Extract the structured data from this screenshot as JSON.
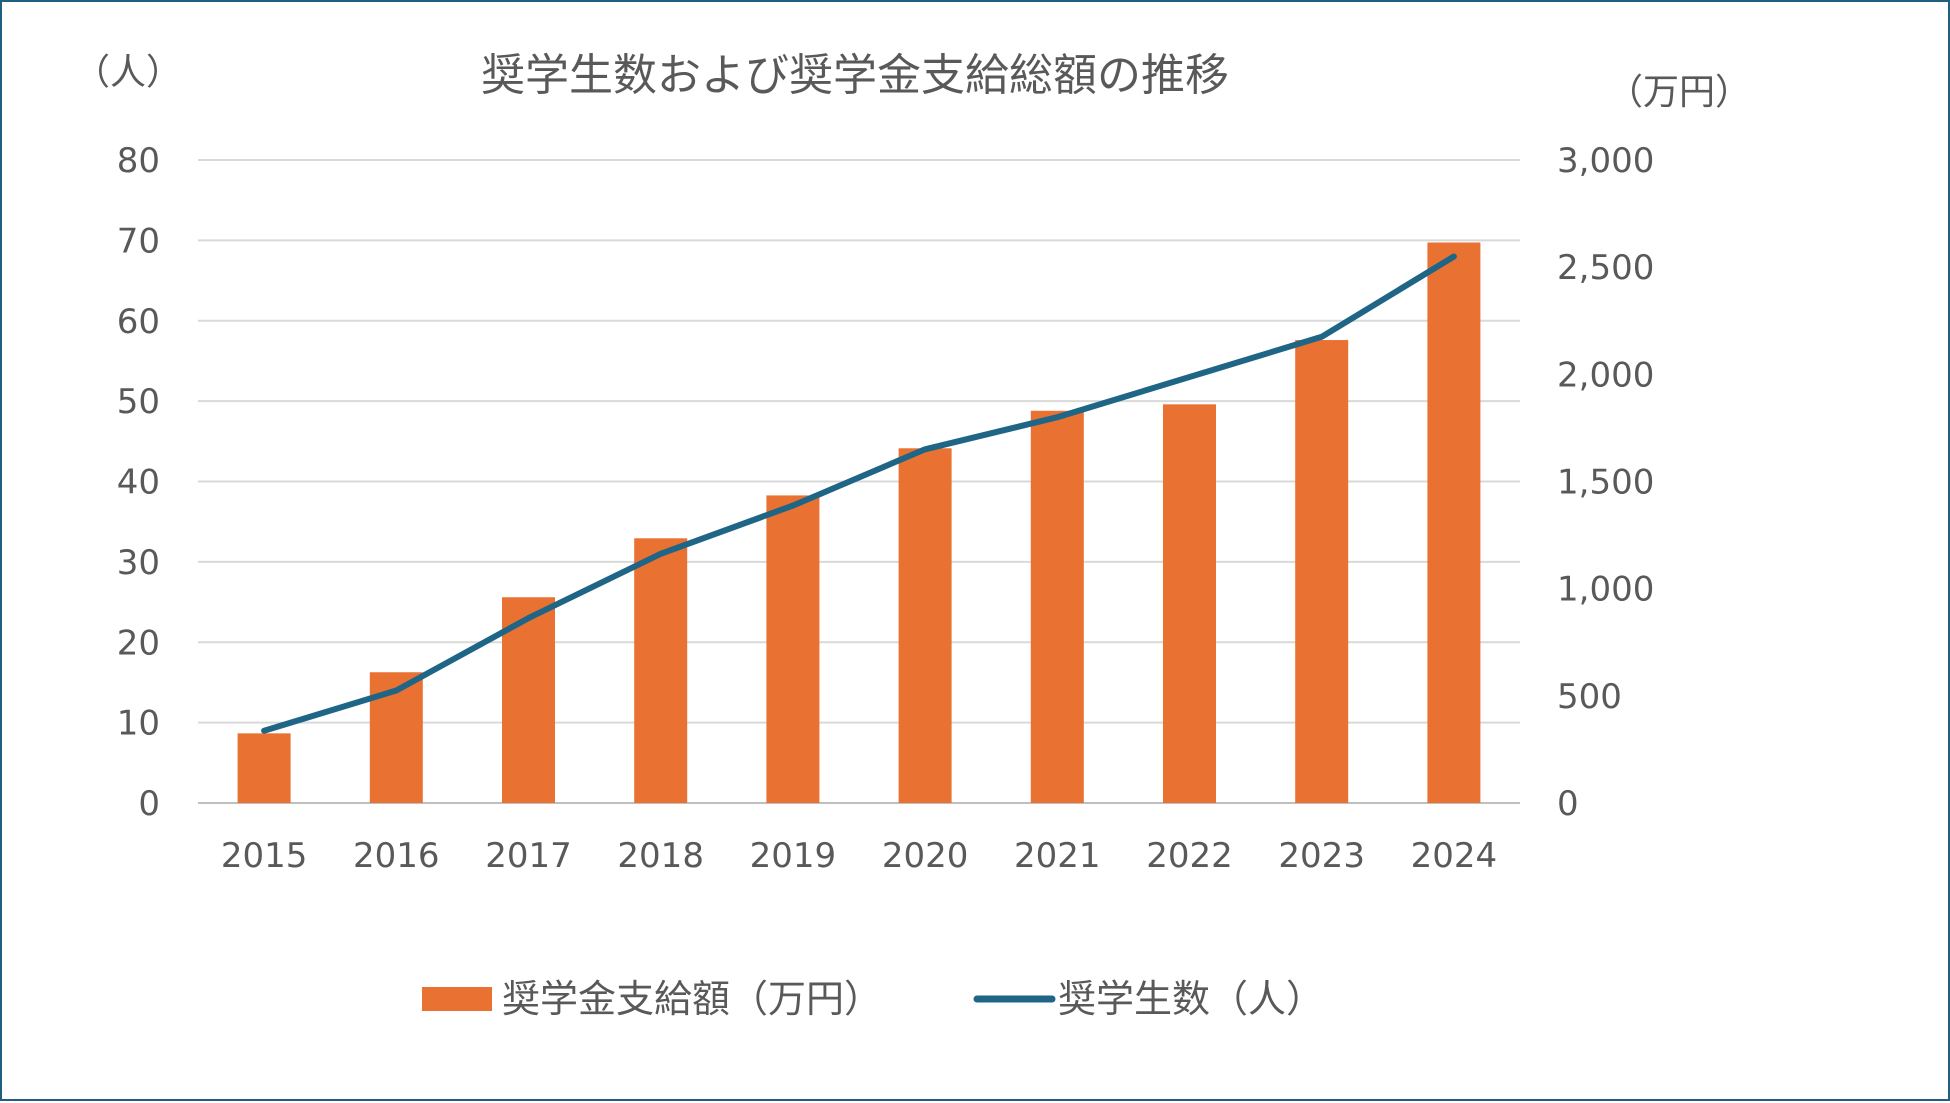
{
  "chart_data": {
    "type": "bar+line",
    "title": "奨学生数および奨学金支給総額の推移",
    "categories": [
      "2015",
      "2016",
      "2017",
      "2018",
      "2019",
      "2020",
      "2021",
      "2022",
      "2023",
      "2024"
    ],
    "series": [
      {
        "name": "奨学金支給額（万円）",
        "type": "bar",
        "axis": "right",
        "values": [
          325,
          610,
          960,
          1235,
          1435,
          1655,
          1830,
          1860,
          2160,
          2615
        ],
        "color": "#e97132"
      },
      {
        "name": "奨学生数（人）",
        "type": "line",
        "axis": "left",
        "values": [
          9,
          14,
          23,
          31,
          37,
          44,
          48,
          53,
          58,
          68
        ],
        "color": "#1f6586"
      }
    ],
    "left_axis": {
      "unit_label": "（人）",
      "ylim": [
        0,
        80
      ],
      "ticks": [
        "0",
        "10",
        "20",
        "30",
        "40",
        "50",
        "60",
        "70",
        "80"
      ]
    },
    "right_axis": {
      "unit_label": "（万円）",
      "ylim": [
        0,
        3000
      ],
      "ticks": [
        "0",
        "500",
        "1,000",
        "1,500",
        "2,000",
        "2,500",
        "3,000"
      ]
    },
    "grid": true,
    "legend_position": "bottom"
  }
}
